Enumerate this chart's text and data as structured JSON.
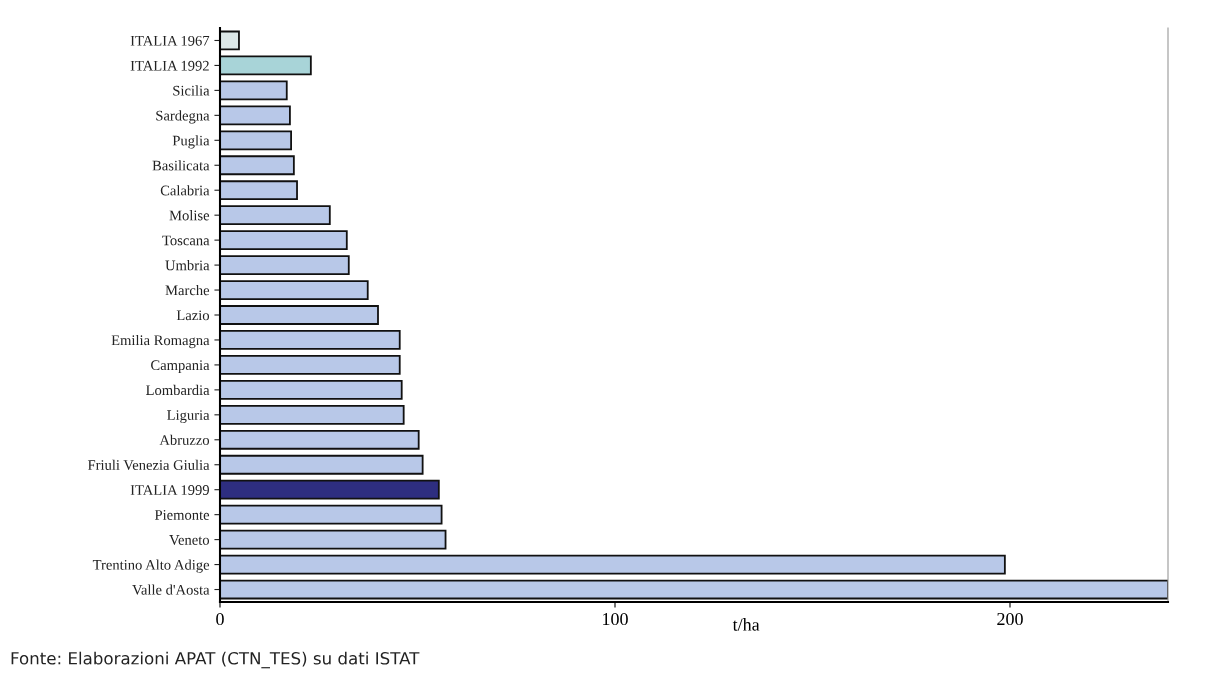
{
  "chart_data": {
    "type": "bar",
    "orientation": "horizontal",
    "xlabel": "t/ha",
    "categories": [
      "ITALIA 1967",
      "ITALIA 1992",
      "Sicilia",
      "Sardegna",
      "Puglia",
      "Basilicata",
      "Calabria",
      "Molise",
      "Toscana",
      "Umbria",
      "Marche",
      "Lazio",
      "Emilia Romagna",
      "Campania",
      "Lombardia",
      "Liguria",
      "Abruzzo",
      "Friuli Venezia Giulia",
      "ITALIA 1999",
      "Piemonte",
      "Veneto",
      "Trentino Alto Adige",
      "Valle d'Aosta"
    ],
    "values": [
      4.8,
      23,
      16.9,
      17.7,
      18,
      18.7,
      19.5,
      27.8,
      32.1,
      32.6,
      37.4,
      40,
      45.5,
      45.5,
      46,
      46.5,
      50.3,
      51.3,
      55.4,
      56.1,
      57.1,
      198.7,
      240
    ],
    "colors": [
      "#dde8e8",
      "#a8d4d8",
      "#b8c8e8",
      "#b8c8e8",
      "#b8c8e8",
      "#b8c8e8",
      "#b8c8e8",
      "#b8c8e8",
      "#b8c8e8",
      "#b8c8e8",
      "#b8c8e8",
      "#b8c8e8",
      "#b8c8e8",
      "#b8c8e8",
      "#b8c8e8",
      "#b8c8e8",
      "#b8c8e8",
      "#b8c8e8",
      "#2e2e80",
      "#b8c8e8",
      "#b8c8e8",
      "#b8c8e8",
      "#b8c8e8"
    ],
    "xlim": [
      0,
      240
    ],
    "xticks": [
      0,
      100,
      200
    ],
    "grid": false,
    "legend": false,
    "annotations": [
      "Fonte: Elaborazioni APAT (CTN_TES) su dati ISTAT"
    ]
  }
}
